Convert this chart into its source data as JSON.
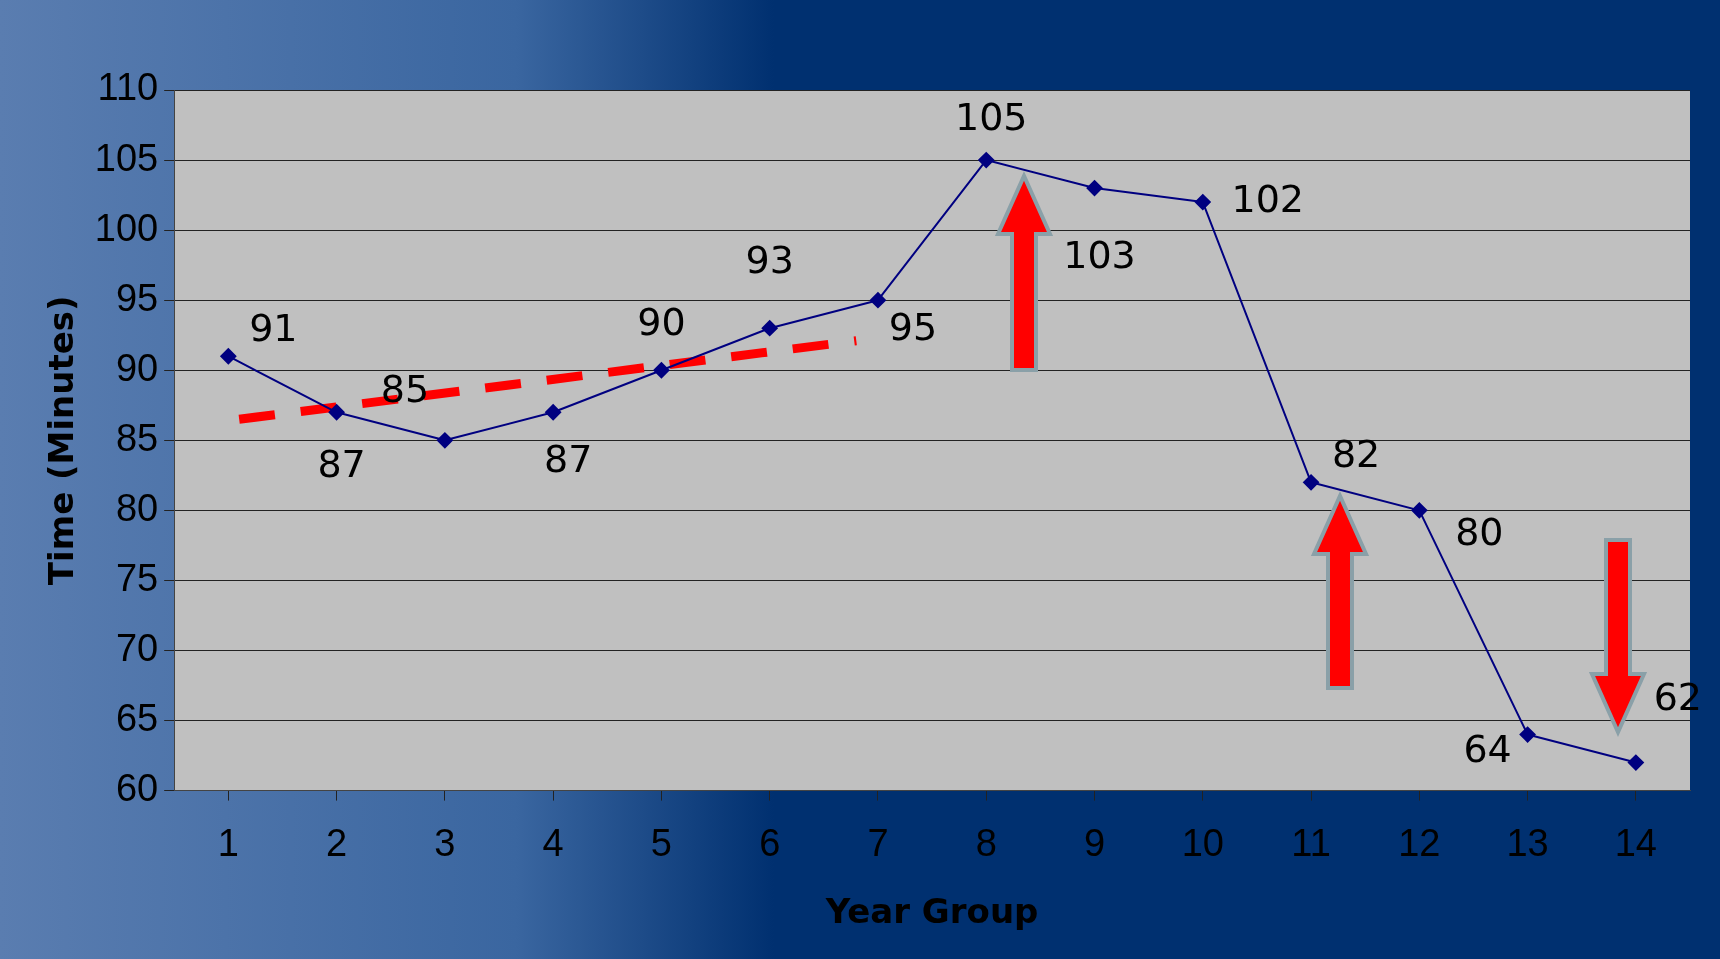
{
  "chart_data": {
    "type": "line",
    "xlabel": "Year Group",
    "ylabel": "Time (Minutes)",
    "x": [
      1,
      2,
      3,
      4,
      5,
      6,
      7,
      8,
      9,
      10,
      11,
      12,
      13,
      14
    ],
    "xlim": [
      0.5,
      14.5
    ],
    "xticks": [
      1,
      2,
      3,
      4,
      5,
      6,
      7,
      8,
      9,
      10,
      11,
      12,
      13,
      14
    ],
    "ylim": [
      60,
      110
    ],
    "yticks": [
      60,
      65,
      70,
      75,
      80,
      85,
      90,
      95,
      100,
      105,
      110
    ],
    "grid": "y",
    "legend": false,
    "marker": "diamond",
    "series": [
      {
        "color": "#000080",
        "values": [
          91,
          87,
          85,
          87,
          90,
          93,
          95,
          105,
          103,
          102,
          82,
          80,
          64,
          62
        ],
        "value_labels": [
          "91",
          "87",
          "85",
          "87",
          "90",
          "93",
          "95",
          "105",
          "103",
          "102",
          "82",
          "80",
          "64",
          "62"
        ]
      },
      {
        "type": "line",
        "color": "#ff0000",
        "line_style": "dashed",
        "marker": "none",
        "x": [
          1.1,
          6.8
        ],
        "values": [
          86.5,
          92.1
        ]
      }
    ]
  }
}
